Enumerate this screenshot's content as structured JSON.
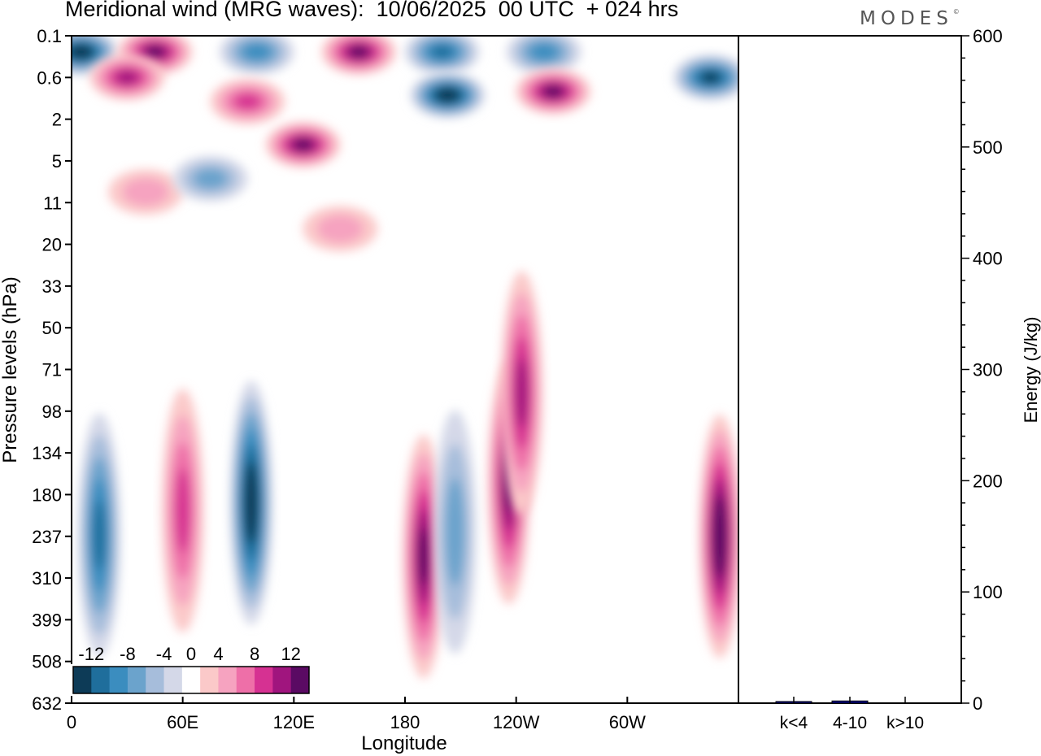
{
  "title": "Meridional wind (MRG waves):  10/06/2025  00 UTC  + 024 hrs",
  "logo": "MODES",
  "logo_mark": "©",
  "chart_data": [
    {
      "type": "heatmap",
      "xlabel": "Longitude",
      "ylabel": "Pressure levels (hPa)",
      "x_ticks": [
        "0",
        "60E",
        "120E",
        "180",
        "120W",
        "60W"
      ],
      "y_ticks": [
        "0.1",
        "0.6",
        "2",
        "5",
        "11",
        "20",
        "33",
        "50",
        "71",
        "98",
        "134",
        "180",
        "237",
        "310",
        "399",
        "508",
        "632"
      ],
      "colorbar": {
        "labels": [
          "-12",
          "-8",
          "-4",
          "0",
          "4",
          "8",
          "12"
        ],
        "levels": [
          -14,
          -12,
          -10,
          -8,
          -6,
          -4,
          -2,
          2,
          4,
          6,
          8,
          10,
          12,
          14
        ],
        "colors": [
          "#0d3b57",
          "#1f6e9c",
          "#3b8dbf",
          "#6ba3cc",
          "#a6bddb",
          "#d4d8e8",
          "#ffffff",
          "#fbc9c9",
          "#f6a3c0",
          "#ee6fa8",
          "#d63192",
          "#a0157e",
          "#5a0a63"
        ]
      },
      "features": [
        {
          "lon": 5,
          "p": 0.2,
          "v": -14
        },
        {
          "lon": 45,
          "p": 0.2,
          "v": 12
        },
        {
          "lon": 100,
          "p": 0.2,
          "v": -8
        },
        {
          "lon": 155,
          "p": 0.2,
          "v": 12
        },
        {
          "lon": 200,
          "p": 0.2,
          "v": -10
        },
        {
          "lon": 255,
          "p": 0.2,
          "v": -8
        },
        {
          "lon": 30,
          "p": 0.6,
          "v": 10
        },
        {
          "lon": 260,
          "p": 0.9,
          "v": 12
        },
        {
          "lon": 203,
          "p": 1.0,
          "v": -14
        },
        {
          "lon": 345,
          "p": 0.6,
          "v": -12
        },
        {
          "lon": 95,
          "p": 1.2,
          "v": 8
        },
        {
          "lon": 125,
          "p": 3.5,
          "v": 12
        },
        {
          "lon": 40,
          "p": 9.0,
          "v": 4
        },
        {
          "lon": 75,
          "p": 7.0,
          "v": -6
        },
        {
          "lon": 145,
          "p": 16,
          "v": 4
        },
        {
          "lon": 15,
          "p": 235,
          "v": -10
        },
        {
          "lon": 60,
          "p": 200,
          "v": 8
        },
        {
          "lon": 97,
          "p": 190,
          "v": -14
        },
        {
          "lon": 190,
          "p": 270,
          "v": 12
        },
        {
          "lon": 207,
          "p": 230,
          "v": -6
        },
        {
          "lon": 236,
          "p": 165,
          "v": 12
        },
        {
          "lon": 243,
          "p": 85,
          "v": 10
        },
        {
          "lon": 350,
          "p": 237,
          "v": 14
        }
      ]
    },
    {
      "type": "bar",
      "categories": [
        "k<4",
        "4-10",
        "k>10"
      ],
      "values": [
        0.2,
        2.0,
        0.0
      ],
      "ylabel": "Energy (J/kg)",
      "ylim": [
        0,
        600
      ],
      "y_ticks": [
        "0",
        "100",
        "200",
        "300",
        "400",
        "500",
        "600"
      ],
      "colors": [
        "#00008b",
        "#00008b",
        "#00008b"
      ]
    }
  ]
}
